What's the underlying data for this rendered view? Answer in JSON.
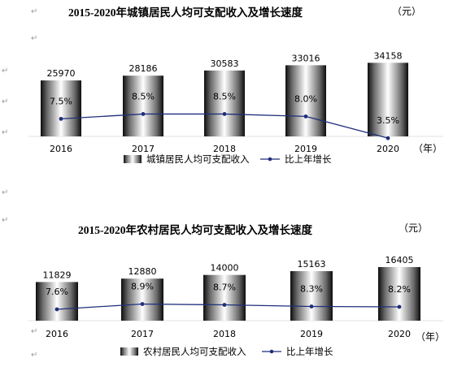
{
  "chart_data": [
    {
      "type": "bar",
      "title": "2015-2020年城镇居民人均可支配收入及增长速度",
      "unit_label": "（元）",
      "x_unit_label": "（年）",
      "categories": [
        "2016",
        "2017",
        "2018",
        "2019",
        "2020"
      ],
      "series": [
        {
          "name": "城镇居民人均可支配收入",
          "type": "bar",
          "values": [
            25970,
            28186,
            30583,
            33016,
            34158
          ]
        },
        {
          "name": "比上年增长",
          "type": "line",
          "values": [
            7.5,
            8.5,
            8.5,
            8.0,
            3.5
          ],
          "labels": [
            "7.5%",
            "8.5%",
            "8.5%",
            "8.0%",
            "3.5%"
          ]
        }
      ],
      "color_line": "#1f2f7a"
    },
    {
      "type": "bar",
      "title": "2015-2020年农村居民人均可支配收入及增长速度",
      "unit_label": "（元）",
      "x_unit_label": "（年）",
      "categories": [
        "2016",
        "2017",
        "2018",
        "2019",
        "2020"
      ],
      "series": [
        {
          "name": "农村居民人均可支配收入",
          "type": "bar",
          "values": [
            11829,
            12880,
            14000,
            15163,
            16405
          ]
        },
        {
          "name": "比上年增长",
          "type": "line",
          "values": [
            7.6,
            8.9,
            8.7,
            8.3,
            8.2
          ],
          "labels": [
            "7.6%",
            "8.9%",
            "8.7%",
            "8.3%",
            "8.2%"
          ]
        }
      ],
      "color_line": "#1f2f7a"
    }
  ]
}
